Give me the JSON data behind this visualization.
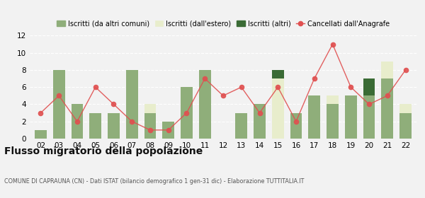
{
  "years": [
    "02",
    "03",
    "04",
    "05",
    "06",
    "07",
    "08",
    "09",
    "10",
    "11",
    "12",
    "13",
    "14",
    "15",
    "16",
    "17",
    "18",
    "19",
    "20",
    "21",
    "22"
  ],
  "iscritti_altri_comuni": [
    1,
    8,
    4,
    3,
    3,
    8,
    3,
    2,
    6,
    8,
    0,
    3,
    4,
    0,
    3,
    5,
    4,
    5,
    5,
    7,
    3
  ],
  "iscritti_estero": [
    0,
    0,
    0,
    0,
    0,
    0,
    1,
    0,
    0,
    0,
    0,
    0,
    0,
    7,
    0,
    0,
    1,
    0,
    0,
    2,
    1
  ],
  "iscritti_altri": [
    0,
    0,
    0,
    0,
    0,
    0,
    0,
    0,
    0,
    0,
    0,
    0,
    0,
    1,
    0,
    0,
    0,
    0,
    2,
    0,
    0
  ],
  "cancellati": [
    3,
    5,
    2,
    6,
    4,
    2,
    1,
    1,
    3,
    7,
    5,
    6,
    3,
    6,
    2,
    7,
    11,
    6,
    4,
    5,
    8
  ],
  "color_altri_comuni": "#8fae7a",
  "color_estero": "#e8edcc",
  "color_altri": "#3a6b35",
  "color_cancellati": "#e05050",
  "title": "Flusso migratorio della popolazione",
  "subtitle": "COMUNE DI CAPRAUNA (CN) - Dati ISTAT (bilancio demografico 1 gen-31 dic) - Elaborazione TUTTITALIA.IT",
  "legend_labels": [
    "Iscritti (da altri comuni)",
    "Iscritti (dall'estero)",
    "Iscritti (altri)",
    "Cancellati dall'Anagrafe"
  ],
  "ylim": [
    0,
    12
  ],
  "yticks": [
    0,
    2,
    4,
    6,
    8,
    10,
    12
  ],
  "bg_color": "#f2f2f2"
}
